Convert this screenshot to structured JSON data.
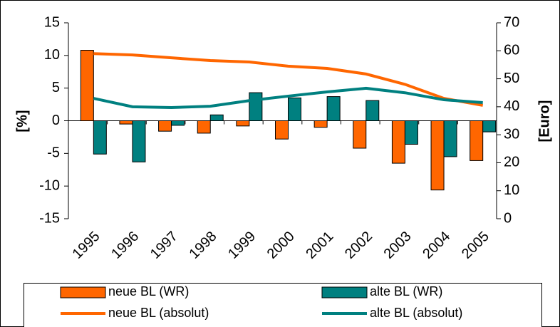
{
  "chart_data": {
    "type": "bar",
    "categories": [
      "1995",
      "1996",
      "1997",
      "1998",
      "1999",
      "2000",
      "2001",
      "2002",
      "2003",
      "2004",
      "2005"
    ],
    "ylabel": "[%]",
    "y2label": "[Euro]",
    "ylim": [
      -15,
      15
    ],
    "yticks": [
      -15,
      -10,
      -5,
      0,
      5,
      10,
      15
    ],
    "y2lim": [
      0,
      70
    ],
    "y2ticks": [
      0,
      10,
      20,
      30,
      40,
      50,
      60,
      70
    ],
    "legend": "bottom",
    "series": [
      {
        "name": "neue BL (WR)",
        "type": "bar",
        "color": "#ff6600",
        "values": [
          10.8,
          -0.5,
          -1.6,
          -1.9,
          -0.8,
          -2.8,
          -1.0,
          -4.2,
          -6.5,
          -10.6,
          -6.1
        ]
      },
      {
        "name": "alte BL (WR)",
        "type": "bar",
        "color": "#008080",
        "values": [
          -5.1,
          -6.3,
          -0.7,
          0.9,
          4.3,
          3.5,
          3.7,
          3.1,
          -3.6,
          -5.5,
          -1.7
        ]
      },
      {
        "name": "neue BL (absolut)",
        "type": "line",
        "axis": "y2",
        "color": "#ff6600",
        "values": [
          59.0,
          58.5,
          57.5,
          56.5,
          56.0,
          54.5,
          53.7,
          51.7,
          48.0,
          43.0,
          40.5
        ]
      },
      {
        "name": "alte BL (absolut)",
        "type": "line",
        "axis": "y2",
        "color": "#008080",
        "values": [
          43.0,
          40.0,
          39.7,
          40.2,
          42.2,
          43.8,
          45.3,
          46.6,
          45.0,
          42.5,
          41.5
        ]
      }
    ]
  }
}
